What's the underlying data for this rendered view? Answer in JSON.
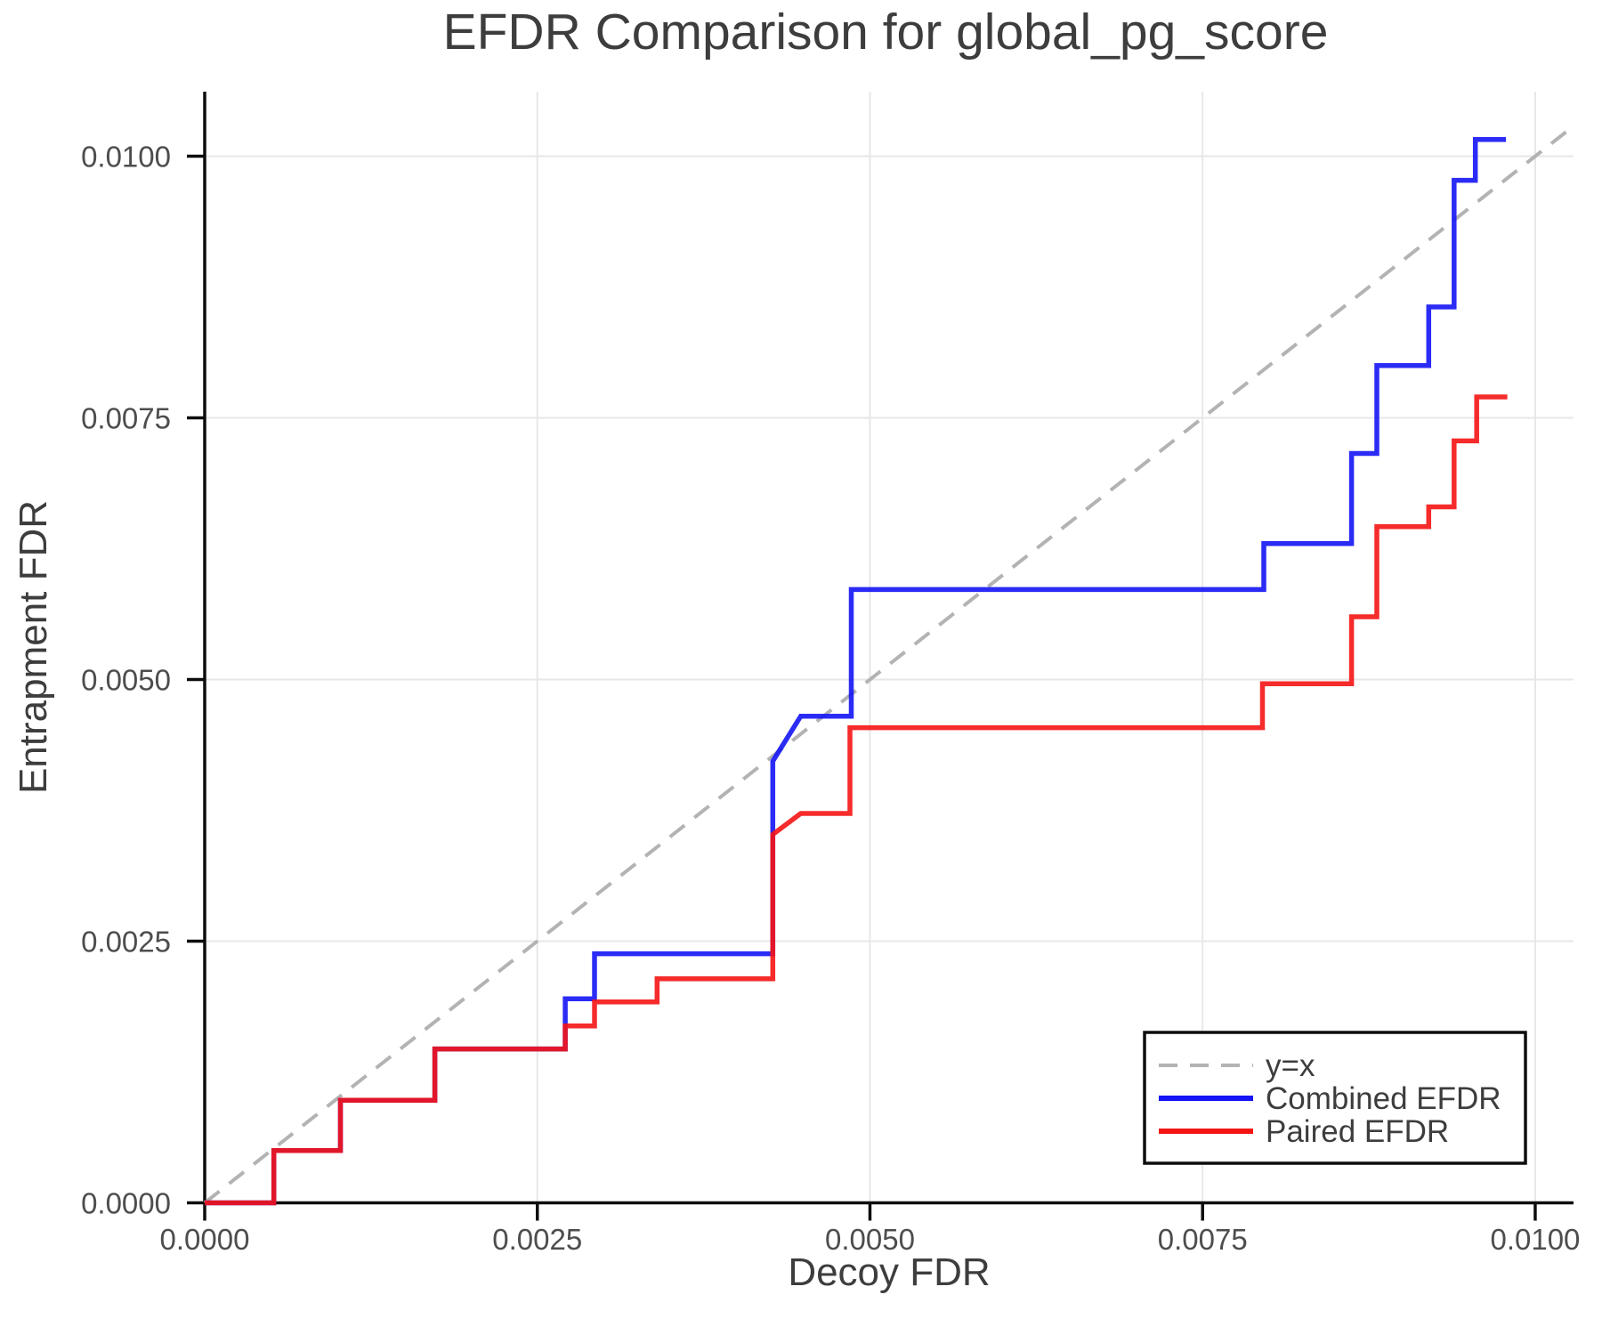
{
  "chart_data": {
    "type": "line",
    "title": "EFDR Comparison for global_pg_score",
    "xlabel": "Decoy FDR",
    "ylabel": "Entrapment FDR",
    "xlim": [
      0,
      0.010288
    ],
    "ylim": [
      0,
      0.010617
    ],
    "grid": true,
    "x_ticks": {
      "values": [
        0,
        0.0025,
        0.005,
        0.0075,
        0.01
      ],
      "labels": [
        "0.0000",
        "0.0025",
        "0.0050",
        "0.0075",
        "0.0100"
      ]
    },
    "y_ticks": {
      "values": [
        0,
        0.0025,
        0.005,
        0.0075,
        0.01
      ],
      "labels": [
        "0.0000",
        "0.0025",
        "0.0050",
        "0.0075",
        "0.0100"
      ]
    },
    "reference_line": {
      "label": "y=x",
      "style": "dashed",
      "color": "#b3b3b3",
      "from": [
        0,
        0
      ],
      "to": [
        0.010288,
        0.010288
      ]
    },
    "series": [
      {
        "name": "Combined EFDR",
        "color": "#1414f5",
        "points": [
          [
            0,
            0
          ],
          [
            0.00052,
            0
          ],
          [
            0.00052,
            0.0005
          ],
          [
            0.00102,
            0.0005
          ],
          [
            0.00102,
            0.00098
          ],
          [
            0.00173,
            0.00098
          ],
          [
            0.00173,
            0.00147
          ],
          [
            0.00271,
            0.00147
          ],
          [
            0.00271,
            0.00195
          ],
          [
            0.00293,
            0.00195
          ],
          [
            0.00293,
            0.00238
          ],
          [
            0.00427,
            0.00238
          ],
          [
            0.00427,
            0.00422
          ],
          [
            0.00448,
            0.00465
          ],
          [
            0.00486,
            0.00465
          ],
          [
            0.00486,
            0.00586
          ],
          [
            0.00796,
            0.00586
          ],
          [
            0.00796,
            0.0063
          ],
          [
            0.00862,
            0.0063
          ],
          [
            0.00862,
            0.00716
          ],
          [
            0.00881,
            0.00716
          ],
          [
            0.00881,
            0.008
          ],
          [
            0.0092,
            0.008
          ],
          [
            0.0092,
            0.00856
          ],
          [
            0.00939,
            0.00856
          ],
          [
            0.00939,
            0.00977
          ],
          [
            0.00955,
            0.00977
          ],
          [
            0.00955,
            0.01016
          ],
          [
            0.00978,
            0.01016
          ]
        ]
      },
      {
        "name": "Paired EFDR",
        "color": "#f51414",
        "points": [
          [
            0,
            0
          ],
          [
            0.00052,
            0
          ],
          [
            0.00052,
            0.0005
          ],
          [
            0.00102,
            0.0005
          ],
          [
            0.00102,
            0.00098
          ],
          [
            0.00173,
            0.00098
          ],
          [
            0.00173,
            0.00147
          ],
          [
            0.00271,
            0.00147
          ],
          [
            0.00271,
            0.00169
          ],
          [
            0.00293,
            0.00169
          ],
          [
            0.00293,
            0.00192
          ],
          [
            0.0034,
            0.00192
          ],
          [
            0.0034,
            0.00214
          ],
          [
            0.00427,
            0.00214
          ],
          [
            0.00427,
            0.00352
          ],
          [
            0.00448,
            0.00372
          ],
          [
            0.00485,
            0.00372
          ],
          [
            0.00485,
            0.00454
          ],
          [
            0.00795,
            0.00454
          ],
          [
            0.00795,
            0.00496
          ],
          [
            0.00862,
            0.00496
          ],
          [
            0.00862,
            0.0056
          ],
          [
            0.00881,
            0.0056
          ],
          [
            0.00881,
            0.00646
          ],
          [
            0.0092,
            0.00646
          ],
          [
            0.0092,
            0.00665
          ],
          [
            0.00939,
            0.00665
          ],
          [
            0.00939,
            0.00728
          ],
          [
            0.00956,
            0.00728
          ],
          [
            0.00956,
            0.0077
          ],
          [
            0.00979,
            0.0077
          ]
        ]
      }
    ],
    "legend": {
      "position": "lower right",
      "entries": [
        {
          "label": "y=x",
          "color": "#b3b3b3",
          "dash": true
        },
        {
          "label": "Combined EFDR",
          "color": "#1414f5",
          "dash": false
        },
        {
          "label": "Paired EFDR",
          "color": "#f51414",
          "dash": false
        }
      ]
    },
    "colors": {
      "background": "#ffffff",
      "spine": "#0d0d0d",
      "grid": "#e7e7e7",
      "title_text": "#3d3d3d",
      "axis_label_text": "#3d3d3d",
      "tick_text": "#4d4d4d",
      "legend_text": "#3d3d3d",
      "legend_border": "#0d0d0d"
    }
  }
}
